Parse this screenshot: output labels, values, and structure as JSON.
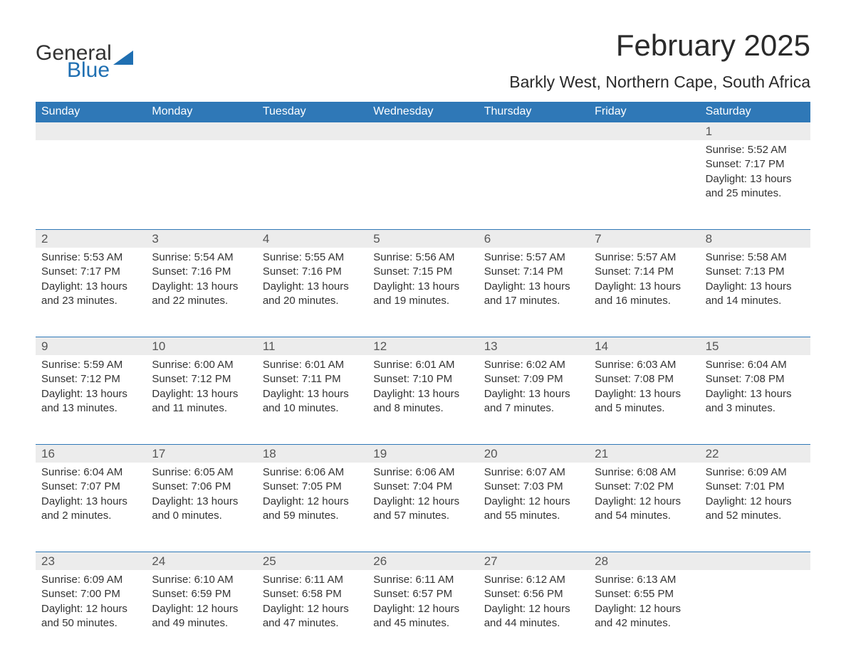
{
  "logo": {
    "word1": "General",
    "word2": "Blue"
  },
  "title": "February 2025",
  "location": "Barkly West, Northern Cape, South Africa",
  "colors": {
    "header_bg": "#2f78b7",
    "header_fg": "#ffffff",
    "strip_bg": "#ececec",
    "text": "#333333",
    "logo_blue": "#1f6fb2",
    "rule": "#2f78b7"
  },
  "days_of_week": [
    "Sunday",
    "Monday",
    "Tuesday",
    "Wednesday",
    "Thursday",
    "Friday",
    "Saturday"
  ],
  "labels": {
    "sunrise": "Sunrise:",
    "sunset": "Sunset:",
    "daylight": "Daylight:"
  },
  "weeks": [
    [
      null,
      null,
      null,
      null,
      null,
      null,
      {
        "d": "1",
        "sunrise": "5:52 AM",
        "sunset": "7:17 PM",
        "daylight": "13 hours and 25 minutes."
      }
    ],
    [
      {
        "d": "2",
        "sunrise": "5:53 AM",
        "sunset": "7:17 PM",
        "daylight": "13 hours and 23 minutes."
      },
      {
        "d": "3",
        "sunrise": "5:54 AM",
        "sunset": "7:16 PM",
        "daylight": "13 hours and 22 minutes."
      },
      {
        "d": "4",
        "sunrise": "5:55 AM",
        "sunset": "7:16 PM",
        "daylight": "13 hours and 20 minutes."
      },
      {
        "d": "5",
        "sunrise": "5:56 AM",
        "sunset": "7:15 PM",
        "daylight": "13 hours and 19 minutes."
      },
      {
        "d": "6",
        "sunrise": "5:57 AM",
        "sunset": "7:14 PM",
        "daylight": "13 hours and 17 minutes."
      },
      {
        "d": "7",
        "sunrise": "5:57 AM",
        "sunset": "7:14 PM",
        "daylight": "13 hours and 16 minutes."
      },
      {
        "d": "8",
        "sunrise": "5:58 AM",
        "sunset": "7:13 PM",
        "daylight": "13 hours and 14 minutes."
      }
    ],
    [
      {
        "d": "9",
        "sunrise": "5:59 AM",
        "sunset": "7:12 PM",
        "daylight": "13 hours and 13 minutes."
      },
      {
        "d": "10",
        "sunrise": "6:00 AM",
        "sunset": "7:12 PM",
        "daylight": "13 hours and 11 minutes."
      },
      {
        "d": "11",
        "sunrise": "6:01 AM",
        "sunset": "7:11 PM",
        "daylight": "13 hours and 10 minutes."
      },
      {
        "d": "12",
        "sunrise": "6:01 AM",
        "sunset": "7:10 PM",
        "daylight": "13 hours and 8 minutes."
      },
      {
        "d": "13",
        "sunrise": "6:02 AM",
        "sunset": "7:09 PM",
        "daylight": "13 hours and 7 minutes."
      },
      {
        "d": "14",
        "sunrise": "6:03 AM",
        "sunset": "7:08 PM",
        "daylight": "13 hours and 5 minutes."
      },
      {
        "d": "15",
        "sunrise": "6:04 AM",
        "sunset": "7:08 PM",
        "daylight": "13 hours and 3 minutes."
      }
    ],
    [
      {
        "d": "16",
        "sunrise": "6:04 AM",
        "sunset": "7:07 PM",
        "daylight": "13 hours and 2 minutes."
      },
      {
        "d": "17",
        "sunrise": "6:05 AM",
        "sunset": "7:06 PM",
        "daylight": "13 hours and 0 minutes."
      },
      {
        "d": "18",
        "sunrise": "6:06 AM",
        "sunset": "7:05 PM",
        "daylight": "12 hours and 59 minutes."
      },
      {
        "d": "19",
        "sunrise": "6:06 AM",
        "sunset": "7:04 PM",
        "daylight": "12 hours and 57 minutes."
      },
      {
        "d": "20",
        "sunrise": "6:07 AM",
        "sunset": "7:03 PM",
        "daylight": "12 hours and 55 minutes."
      },
      {
        "d": "21",
        "sunrise": "6:08 AM",
        "sunset": "7:02 PM",
        "daylight": "12 hours and 54 minutes."
      },
      {
        "d": "22",
        "sunrise": "6:09 AM",
        "sunset": "7:01 PM",
        "daylight": "12 hours and 52 minutes."
      }
    ],
    [
      {
        "d": "23",
        "sunrise": "6:09 AM",
        "sunset": "7:00 PM",
        "daylight": "12 hours and 50 minutes."
      },
      {
        "d": "24",
        "sunrise": "6:10 AM",
        "sunset": "6:59 PM",
        "daylight": "12 hours and 49 minutes."
      },
      {
        "d": "25",
        "sunrise": "6:11 AM",
        "sunset": "6:58 PM",
        "daylight": "12 hours and 47 minutes."
      },
      {
        "d": "26",
        "sunrise": "6:11 AM",
        "sunset": "6:57 PM",
        "daylight": "12 hours and 45 minutes."
      },
      {
        "d": "27",
        "sunrise": "6:12 AM",
        "sunset": "6:56 PM",
        "daylight": "12 hours and 44 minutes."
      },
      {
        "d": "28",
        "sunrise": "6:13 AM",
        "sunset": "6:55 PM",
        "daylight": "12 hours and 42 minutes."
      },
      null
    ]
  ]
}
